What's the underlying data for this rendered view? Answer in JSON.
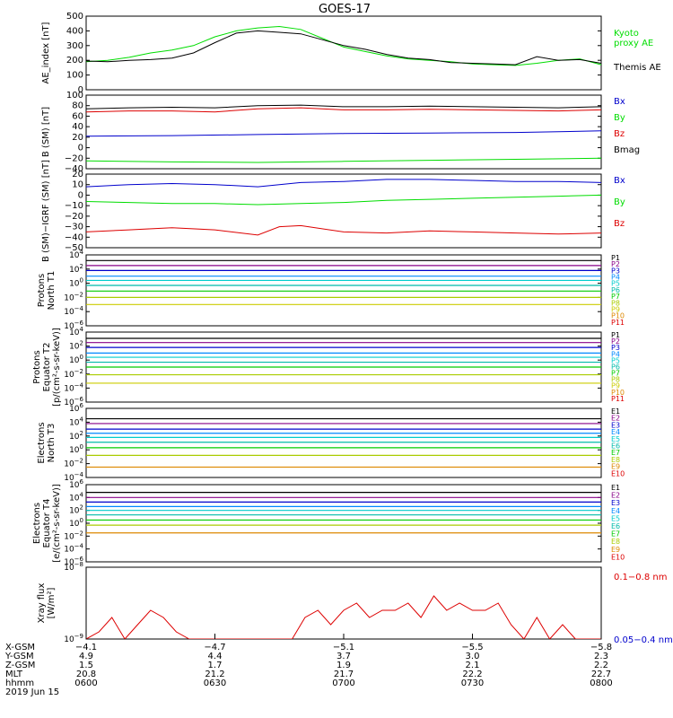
{
  "title": "GOES-17",
  "colors": {
    "black": "#000000",
    "green": "#00dd00",
    "blue": "#0000cc",
    "red": "#dd0000",
    "p_channels": [
      "#000000",
      "#880088",
      "#0000cc",
      "#0088ff",
      "#00cccc",
      "#00bbaa",
      "#00cc00",
      "#aacc00",
      "#cccc00",
      "#dd8800",
      "#dd0000"
    ],
    "e_channels": [
      "#000000",
      "#880088",
      "#0000cc",
      "#0088ff",
      "#00cccc",
      "#00bbaa",
      "#00cc00",
      "#aacc00",
      "#dd8800",
      "#dd0000",
      "#dd0000"
    ]
  },
  "chart_data": [
    {
      "type": "line",
      "ylabel": "AE_index [nT]",
      "ylim": [
        0,
        500
      ],
      "yticks": [
        {
          "label": "500",
          "value": 500
        },
        {
          "label": "400",
          "value": 400
        },
        {
          "label": "300",
          "value": 300
        },
        {
          "label": "200",
          "value": 200
        },
        {
          "label": "100",
          "value": 100
        },
        {
          "label": "0",
          "value": 0
        }
      ],
      "xlim": [
        0,
        120
      ],
      "series": [
        {
          "name": "Kyoto proxy AE",
          "legend_lines": [
            "Kyoto",
            "proxy AE"
          ],
          "color": "#00dd00",
          "x": [
            0,
            5,
            10,
            15,
            20,
            25,
            30,
            35,
            40,
            45,
            50,
            55,
            60,
            65,
            70,
            75,
            80,
            85,
            90,
            95,
            100,
            105,
            110,
            115,
            120
          ],
          "y": [
            190,
            200,
            220,
            250,
            270,
            300,
            360,
            400,
            420,
            430,
            410,
            350,
            290,
            260,
            230,
            210,
            200,
            190,
            175,
            170,
            165,
            180,
            200,
            210,
            170
          ]
        },
        {
          "name": "Themis AE",
          "legend_lines": [
            "Themis AE"
          ],
          "color": "#000000",
          "x": [
            0,
            5,
            10,
            15,
            20,
            25,
            30,
            35,
            40,
            45,
            50,
            55,
            60,
            65,
            70,
            75,
            80,
            85,
            90,
            95,
            100,
            105,
            110,
            115,
            120
          ],
          "y": [
            195,
            190,
            200,
            205,
            215,
            250,
            320,
            385,
            400,
            390,
            380,
            340,
            300,
            275,
            240,
            215,
            205,
            185,
            180,
            175,
            170,
            225,
            200,
            205,
            180
          ]
        }
      ]
    },
    {
      "type": "line",
      "ylabel": "B (SM) [nT]",
      "ylim": [
        -40,
        100
      ],
      "yticks": [
        {
          "label": "100",
          "value": 100
        },
        {
          "label": "80",
          "value": 80
        },
        {
          "label": "60",
          "value": 60
        },
        {
          "label": "40",
          "value": 40
        },
        {
          "label": "20",
          "value": 20
        },
        {
          "label": "0",
          "value": 0
        },
        {
          "label": "−20",
          "value": -20
        },
        {
          "label": "−40",
          "value": -40
        }
      ],
      "xlim": [
        0,
        120
      ],
      "series": [
        {
          "name": "Bx",
          "color": "#0000cc",
          "x": [
            0,
            20,
            40,
            60,
            80,
            100,
            120
          ],
          "y": [
            22,
            23,
            25,
            27,
            28,
            29,
            32
          ]
        },
        {
          "name": "By",
          "color": "#00dd00",
          "x": [
            0,
            20,
            40,
            60,
            80,
            100,
            120
          ],
          "y": [
            -25,
            -27,
            -28,
            -26,
            -24,
            -22,
            -20
          ]
        },
        {
          "name": "Bz",
          "color": "#dd0000",
          "x": [
            0,
            10,
            20,
            30,
            40,
            50,
            60,
            70,
            80,
            90,
            100,
            110,
            120
          ],
          "y": [
            68,
            70,
            70,
            68,
            74,
            76,
            72,
            72,
            73,
            72,
            71,
            70,
            72
          ]
        },
        {
          "name": "Bmag",
          "color": "#000000",
          "x": [
            0,
            10,
            20,
            30,
            40,
            50,
            60,
            70,
            80,
            90,
            100,
            110,
            120
          ],
          "y": [
            74,
            76,
            77,
            76,
            80,
            81,
            78,
            78,
            79,
            78,
            77,
            76,
            78
          ]
        }
      ]
    },
    {
      "type": "line",
      "ylabel": "B (SM)−IGRF (SM) [nT]",
      "ylim": [
        -50,
        20
      ],
      "yticks": [
        {
          "label": "20",
          "value": 20
        },
        {
          "label": "10",
          "value": 10
        },
        {
          "label": "0",
          "value": 0
        },
        {
          "label": "−10",
          "value": -10
        },
        {
          "label": "−20",
          "value": -20
        },
        {
          "label": "−30",
          "value": -30
        },
        {
          "label": "−40",
          "value": -40
        },
        {
          "label": "−50",
          "value": -50
        }
      ],
      "xlim": [
        0,
        120
      ],
      "series": [
        {
          "name": "Bx",
          "color": "#0000cc",
          "x": [
            0,
            10,
            20,
            30,
            40,
            50,
            60,
            70,
            80,
            90,
            100,
            110,
            120
          ],
          "y": [
            8,
            10,
            11,
            10,
            8,
            12,
            13,
            15,
            15,
            14,
            13,
            13,
            12
          ]
        },
        {
          "name": "By",
          "color": "#00dd00",
          "x": [
            0,
            10,
            20,
            30,
            40,
            50,
            60,
            70,
            80,
            90,
            100,
            110,
            120
          ],
          "y": [
            -6,
            -7,
            -8,
            -8,
            -9,
            -8,
            -7,
            -5,
            -4,
            -3,
            -2,
            -1,
            0
          ]
        },
        {
          "name": "Bz",
          "color": "#dd0000",
          "x": [
            0,
            10,
            20,
            30,
            40,
            45,
            50,
            60,
            70,
            80,
            90,
            100,
            110,
            120
          ],
          "y": [
            -35,
            -33,
            -31,
            -33,
            -38,
            -30,
            -29,
            -35,
            -36,
            -34,
            -35,
            -36,
            -37,
            -36
          ]
        }
      ]
    },
    {
      "type": "line",
      "yscale": "log",
      "ylabel_lines": [
        "Protons",
        "North T1"
      ],
      "ylim_exp": [
        -6,
        4
      ],
      "ytick_exps": [
        4,
        2,
        0,
        -2,
        -4,
        -6
      ],
      "xlim": [
        0,
        120
      ],
      "channel_labels": [
        "P1",
        "P2",
        "P3",
        "P4",
        "P5",
        "P6",
        "P7",
        "P8",
        "P9",
        "P10",
        "P11"
      ],
      "levels_exp": [
        3.2,
        2.5,
        1.8,
        1.0,
        0.4,
        -0.3,
        -1.1,
        -2.0,
        -3.0
      ]
    },
    {
      "type": "line",
      "yscale": "log",
      "ylabel_lines": [
        "Protons",
        "Equator T2",
        "[p/(cm²-s-sr-keV)]"
      ],
      "ylim_exp": [
        -6,
        4
      ],
      "ytick_exps": [
        4,
        2,
        0,
        -2,
        -4,
        -6
      ],
      "xlim": [
        0,
        120
      ],
      "channel_labels": [
        "P1",
        "P2",
        "P3",
        "P4",
        "P5",
        "P6",
        "P7",
        "P8",
        "P9",
        "P10",
        "P11"
      ],
      "levels_exp": [
        3.1,
        2.5,
        1.8,
        1.0,
        0.4,
        -0.3,
        -1.0,
        -2.1,
        -3.3
      ]
    },
    {
      "type": "line",
      "yscale": "log",
      "ylabel_lines": [
        "Electrons",
        "North T3"
      ],
      "ylim_exp": [
        -4,
        6
      ],
      "ytick_exps": [
        6,
        4,
        2,
        0,
        -2,
        -4
      ],
      "xlim": [
        0,
        120
      ],
      "channel_labels": [
        "E1",
        "E2",
        "E3",
        "E4",
        "E5",
        "E6",
        "E7",
        "E8",
        "E9",
        "E10"
      ],
      "levels_exp": [
        4.5,
        3.8,
        3.0,
        2.4,
        1.8,
        1.1,
        0.3,
        -0.8,
        -2.5
      ]
    },
    {
      "type": "line",
      "yscale": "log",
      "ylabel_lines": [
        "Electrons",
        "Equator T4",
        "[e/(cm²-s-sr-keV)]"
      ],
      "ylim_exp": [
        -6,
        6
      ],
      "ytick_exps": [
        6,
        4,
        2,
        0,
        -2,
        -4,
        -6
      ],
      "xlim": [
        0,
        120
      ],
      "channel_labels": [
        "E1",
        "E2",
        "E3",
        "E4",
        "E5",
        "E6",
        "E7",
        "E8",
        "E9",
        "E10"
      ],
      "levels_exp": [
        4.8,
        4.0,
        3.3,
        2.6,
        2.0,
        1.3,
        0.5,
        -0.3,
        -1.5
      ]
    },
    {
      "type": "line",
      "yscale": "log",
      "ylabel_lines": [
        "Xray flux",
        "[W/m²]"
      ],
      "ylim_exp": [
        -9,
        -8
      ],
      "ytick_exps": [
        -8,
        -9
      ],
      "xlim": [
        0,
        120
      ],
      "series": [
        {
          "name": "0.1−0.8 nm",
          "color": "#dd0000",
          "x": [
            0,
            3,
            6,
            9,
            12,
            15,
            18,
            21,
            24,
            27,
            30,
            33,
            36,
            39,
            42,
            45,
            48,
            51,
            54,
            57,
            60,
            63,
            66,
            69,
            72,
            75,
            78,
            81,
            84,
            87,
            90,
            93,
            96,
            99,
            102,
            105,
            108,
            111,
            114,
            117,
            120
          ],
          "y": [
            -9,
            -8.9,
            -8.7,
            -9,
            -8.8,
            -8.6,
            -8.7,
            -8.9,
            -9,
            -9,
            -9,
            -9,
            -9,
            -9,
            -9,
            -9,
            -9,
            -8.7,
            -8.6,
            -8.8,
            -8.6,
            -8.5,
            -8.7,
            -8.6,
            -8.6,
            -8.5,
            -8.7,
            -8.4,
            -8.6,
            -8.5,
            -8.6,
            -8.6,
            -8.5,
            -8.8,
            -9,
            -8.7,
            -9,
            -8.8,
            -9,
            -9,
            -9
          ]
        },
        {
          "name": "0.05−0.4 nm",
          "color": "#0000cc",
          "x": [],
          "y": []
        }
      ]
    }
  ],
  "x_axis": {
    "row_labels": [
      "X-GSM",
      "Y-GSM",
      "Z-GSM",
      "MLT",
      "hhmm",
      "2019 Jun 15"
    ],
    "ticks": [
      {
        "x": 0,
        "values": [
          "−4.1",
          "4.9",
          "1.5",
          "20.8",
          "0600"
        ]
      },
      {
        "x": 30,
        "values": [
          "−4.7",
          "4.4",
          "1.7",
          "21.2",
          "0630"
        ]
      },
      {
        "x": 60,
        "values": [
          "−5.1",
          "3.7",
          "1.9",
          "21.7",
          "0700"
        ]
      },
      {
        "x": 90,
        "values": [
          "−5.5",
          "3.0",
          "2.1",
          "22.2",
          "0730"
        ]
      },
      {
        "x": 120,
        "values": [
          "−5.8",
          "2.3",
          "2.2",
          "22.7",
          "0800"
        ]
      }
    ]
  }
}
